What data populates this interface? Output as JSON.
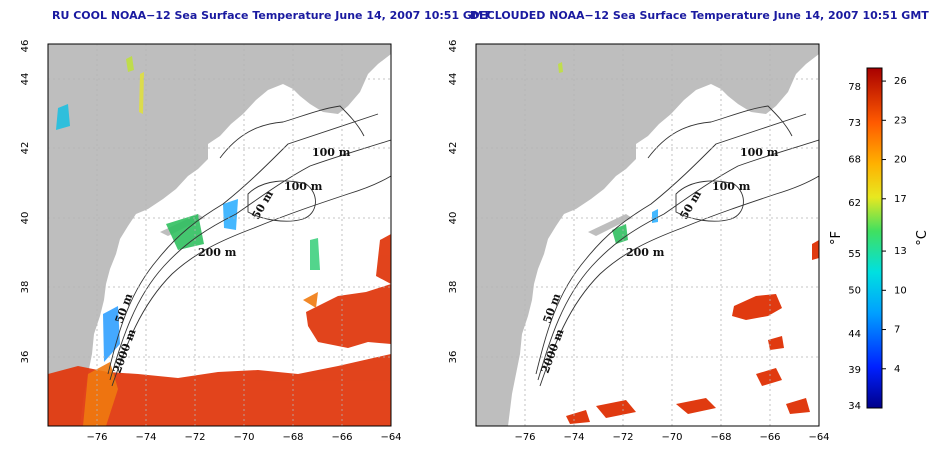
{
  "titles": {
    "left": "RU COOL NOAA−12 Sea Surface Temperature June 14, 2007 10:51 GMT",
    "right": "DECLOUDED NOAA−12 Sea Surface Temperature June 14, 2007 10:51 GMT"
  },
  "colors": {
    "land": "#bebebe",
    "water_bg": "#ffffff",
    "grid": "#b4b4b4",
    "contour": "#333333",
    "warm": "#e03a10",
    "title": "#1a1aa0"
  },
  "axes": {
    "lon_ticks": [
      "−76",
      "−74",
      "−72",
      "−70",
      "−68",
      "−66",
      "−64"
    ],
    "lat_ticks": [
      "36",
      "38",
      "40",
      "42",
      "44",
      "46"
    ],
    "lon_range": [
      -77,
      -63
    ],
    "lat_range": [
      35,
      46
    ]
  },
  "contour_labels": [
    "100 m",
    "100 m",
    "50 m",
    "200 m",
    "50 m",
    "2000 m"
  ],
  "colorbar": {
    "fahrenheit_ticks": [
      "78",
      "73",
      "68",
      "62",
      "55",
      "50",
      "44",
      "39",
      "34"
    ],
    "celsius_ticks": [
      "26",
      "23",
      "20",
      "17",
      "13",
      "10",
      "7",
      "4"
    ],
    "unit_f": "°F",
    "unit_c": "°C",
    "c_range": [
      1,
      27
    ]
  }
}
